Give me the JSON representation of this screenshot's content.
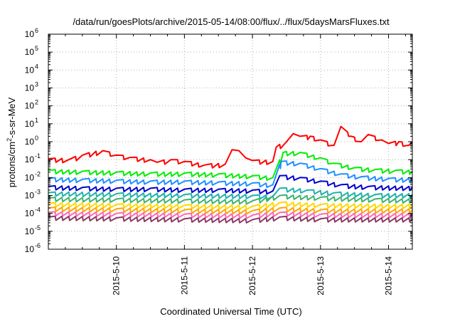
{
  "chart_data": {
    "type": "line",
    "title": "/data/run/goesPlots/archive/2015-05-14/08:00/flux/../flux/5daysMarsFluxes.txt",
    "xlabel": "Coordinated Universal Time (UTC)",
    "ylabel": {
      "base": "protons/cm",
      "sup": "2",
      "rest": "-s-sr-MeV"
    },
    "yscale": "log",
    "ylim_exp": [
      -6,
      6
    ],
    "y_ticks": [
      {
        "base": "10",
        "exp": "-6",
        "e": -6
      },
      {
        "base": "10",
        "exp": "-5",
        "e": -5
      },
      {
        "base": "10",
        "exp": "-4",
        "e": -4
      },
      {
        "base": "10",
        "exp": "-3",
        "e": -3
      },
      {
        "base": "10",
        "exp": "-2",
        "e": -2
      },
      {
        "base": "10",
        "exp": "-1",
        "e": -1
      },
      {
        "base": "10",
        "exp": "0",
        "e": 0
      },
      {
        "base": "10",
        "exp": "1",
        "e": 1
      },
      {
        "base": "10",
        "exp": "2",
        "e": 2
      },
      {
        "base": "10",
        "exp": "3",
        "e": 3
      },
      {
        "base": "10",
        "exp": "4",
        "e": 4
      },
      {
        "base": "10",
        "exp": "5",
        "e": 5
      },
      {
        "base": "10",
        "exp": "6",
        "e": 6
      }
    ],
    "x_range_days": [
      9.0,
      14.35
    ],
    "x_ticks": [
      {
        "label": "2015-5-10",
        "day": 10
      },
      {
        "label": "2015-5-11",
        "day": 11
      },
      {
        "label": "2015-5-12",
        "day": 12
      },
      {
        "label": "2015-5-13",
        "day": 13
      },
      {
        "label": "2015-5-14",
        "day": 14
      }
    ],
    "grid": true,
    "series": [
      {
        "color": "#ff0000",
        "dt": 0.1,
        "points": [
          [
            9.0,
            -0.95
          ],
          [
            9.3,
            -1.0
          ],
          [
            9.5,
            -0.75
          ],
          [
            9.8,
            -0.5
          ],
          [
            10.0,
            -0.75
          ],
          [
            10.2,
            -0.88
          ],
          [
            10.5,
            -1.0
          ],
          [
            10.6,
            -1.15
          ],
          [
            10.8,
            -1.0
          ],
          [
            11.0,
            -1.1
          ],
          [
            11.3,
            -1.3
          ],
          [
            11.6,
            -1.25
          ],
          [
            11.7,
            -0.45
          ],
          [
            11.8,
            -0.5
          ],
          [
            11.9,
            -0.9
          ],
          [
            12.0,
            -1.05
          ],
          [
            12.3,
            -1.1
          ],
          [
            12.35,
            -0.3
          ],
          [
            12.5,
            0.0
          ],
          [
            12.6,
            0.45
          ],
          [
            12.7,
            0.3
          ],
          [
            12.85,
            0.3
          ],
          [
            13.0,
            0.1
          ],
          [
            13.2,
            -0.2
          ],
          [
            13.3,
            0.85
          ],
          [
            13.45,
            0.3
          ],
          [
            13.6,
            0.0
          ],
          [
            13.7,
            0.4
          ],
          [
            13.9,
            0.1
          ],
          [
            14.0,
            -0.1
          ],
          [
            14.15,
            0.0
          ],
          [
            14.3,
            -0.2
          ],
          [
            14.35,
            0.0
          ]
        ]
      },
      {
        "color": "#00ee00",
        "dt": 0.1,
        "points": [
          [
            9.0,
            -1.6
          ],
          [
            9.5,
            -1.65
          ],
          [
            10.0,
            -1.7
          ],
          [
            10.5,
            -1.75
          ],
          [
            11.0,
            -1.75
          ],
          [
            11.5,
            -1.8
          ],
          [
            12.0,
            -1.9
          ],
          [
            12.3,
            -2.0
          ],
          [
            12.45,
            -0.6
          ],
          [
            12.7,
            -0.6
          ],
          [
            13.0,
            -0.9
          ],
          [
            13.2,
            -1.2
          ],
          [
            13.5,
            -1.45
          ],
          [
            13.8,
            -1.55
          ],
          [
            14.1,
            -1.6
          ],
          [
            14.35,
            -1.65
          ]
        ]
      },
      {
        "color": "#1e90ff",
        "dt": 0.1,
        "points": [
          [
            9.0,
            -2.05
          ],
          [
            9.5,
            -2.1
          ],
          [
            10.0,
            -2.15
          ],
          [
            10.5,
            -2.2
          ],
          [
            11.0,
            -2.2
          ],
          [
            11.5,
            -2.25
          ],
          [
            12.0,
            -2.3
          ],
          [
            12.3,
            -2.4
          ],
          [
            12.42,
            -1.1
          ],
          [
            12.7,
            -1.2
          ],
          [
            13.0,
            -1.5
          ],
          [
            13.3,
            -1.8
          ],
          [
            13.6,
            -1.95
          ],
          [
            14.0,
            -2.05
          ],
          [
            14.35,
            -2.1
          ]
        ]
      },
      {
        "color": "#0000cd",
        "dt": 0.1,
        "points": [
          [
            9.0,
            -2.5
          ],
          [
            9.5,
            -2.55
          ],
          [
            10.0,
            -2.6
          ],
          [
            10.5,
            -2.6
          ],
          [
            11.0,
            -2.65
          ],
          [
            11.5,
            -2.65
          ],
          [
            12.0,
            -2.7
          ],
          [
            12.3,
            -2.75
          ],
          [
            12.4,
            -1.9
          ],
          [
            12.7,
            -2.0
          ],
          [
            13.0,
            -2.2
          ],
          [
            13.3,
            -2.4
          ],
          [
            13.7,
            -2.5
          ],
          [
            14.35,
            -2.55
          ]
        ]
      },
      {
        "color": "#20b2aa",
        "dt": 0.1,
        "points": [
          [
            9.0,
            -2.85
          ],
          [
            10.0,
            -2.9
          ],
          [
            11.0,
            -2.95
          ],
          [
            12.0,
            -3.0
          ],
          [
            12.3,
            -3.05
          ],
          [
            12.4,
            -2.6
          ],
          [
            12.8,
            -2.7
          ],
          [
            13.2,
            -2.85
          ],
          [
            13.8,
            -2.95
          ],
          [
            14.35,
            -2.95
          ]
        ]
      },
      {
        "color": "#3cb371",
        "dt": 0.1,
        "points": [
          [
            9.0,
            -3.15
          ],
          [
            10.0,
            -3.2
          ],
          [
            11.0,
            -3.25
          ],
          [
            12.0,
            -3.3
          ],
          [
            12.4,
            -3.0
          ],
          [
            13.0,
            -3.1
          ],
          [
            13.8,
            -3.2
          ],
          [
            14.35,
            -3.25
          ]
        ]
      },
      {
        "color": "#ffd700",
        "dt": 0.1,
        "points": [
          [
            9.0,
            -3.45
          ],
          [
            10.0,
            -3.5
          ],
          [
            11.0,
            -3.55
          ],
          [
            12.0,
            -3.6
          ],
          [
            12.4,
            -3.4
          ],
          [
            13.0,
            -3.5
          ],
          [
            14.35,
            -3.55
          ]
        ]
      },
      {
        "color": "#ffa500",
        "dt": 0.1,
        "points": [
          [
            9.0,
            -3.7
          ],
          [
            10.0,
            -3.75
          ],
          [
            11.0,
            -3.8
          ],
          [
            12.0,
            -3.85
          ],
          [
            12.4,
            -3.7
          ],
          [
            13.0,
            -3.8
          ],
          [
            14.35,
            -3.8
          ]
        ]
      },
      {
        "color": "#ff69b4",
        "dt": 0.1,
        "points": [
          [
            9.0,
            -3.95
          ],
          [
            10.0,
            -4.0
          ],
          [
            11.0,
            -4.05
          ],
          [
            12.0,
            -4.1
          ],
          [
            12.4,
            -3.95
          ],
          [
            13.0,
            -4.05
          ],
          [
            14.35,
            -4.05
          ]
        ]
      },
      {
        "color": "#8b3a62",
        "dt": 0.1,
        "points": [
          [
            9.0,
            -4.2
          ],
          [
            10.0,
            -4.25
          ],
          [
            11.0,
            -4.3
          ],
          [
            12.0,
            -4.35
          ],
          [
            12.4,
            -4.2
          ],
          [
            13.0,
            -4.3
          ],
          [
            14.35,
            -4.3
          ]
        ]
      }
    ]
  }
}
